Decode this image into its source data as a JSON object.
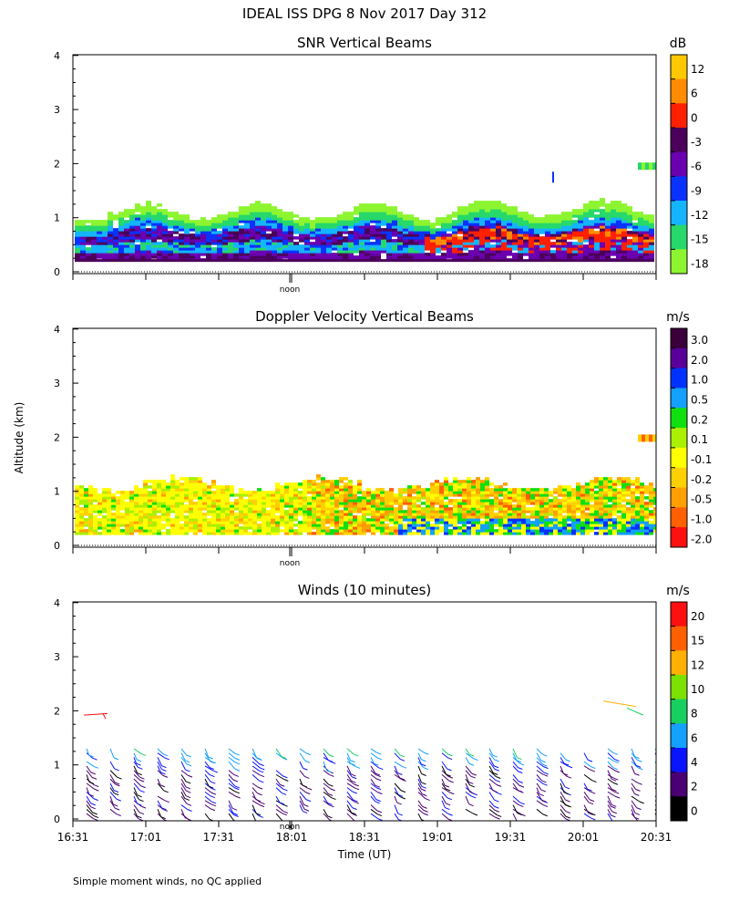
{
  "title": "IDEAL ISS DPG    8 Nov 2017 Day 312",
  "ylabel": "Altitude (km)",
  "y_ticks": [
    "0",
    "1",
    "2",
    "3",
    "4"
  ],
  "noon_label": "noon",
  "footer": "Simple moment winds, no QC applied",
  "chart_data": [
    {
      "type": "heatmap",
      "title": "SNR Vertical Beams",
      "colorbar_unit": "dB",
      "ylim": [
        0,
        4
      ],
      "colorbar_ticks": [
        "12",
        "6",
        "0",
        "-3",
        "-6",
        "-9",
        "-12",
        "-15",
        "-18"
      ],
      "colorbar_colors": [
        "#ffc800",
        "#ff8c00",
        "#ff2000",
        "#4b005a",
        "#6a00b0",
        "#0a32ff",
        "#14b4ff",
        "#27d86a",
        "#8cf530"
      ],
      "description_bands": [
        {
          "from_km": 0.2,
          "to_km": 1.25,
          "time_range": [
            "16:31",
            "20:31"
          ]
        },
        {
          "from_km": 1.85,
          "to_km": 2.05,
          "time_range": [
            "20:15",
            "20:31"
          ]
        }
      ]
    },
    {
      "type": "heatmap",
      "title": "Doppler Velocity Vertical Beams",
      "colorbar_unit": "m/s",
      "ylim": [
        0,
        4
      ],
      "colorbar_ticks": [
        "3.0",
        "2.0",
        "1.0",
        "0.5",
        "0.2",
        "0.1",
        "-0.1",
        "-0.2",
        "-0.5",
        "-1.0",
        "-2.0"
      ],
      "colorbar_colors": [
        "#3a003a",
        "#5a009a",
        "#0032ff",
        "#14a0ff",
        "#10e010",
        "#aaf000",
        "#ffff00",
        "#ffd000",
        "#ffa000",
        "#ff6000",
        "#ff1010"
      ],
      "description_bands": [
        {
          "from_km": 0.2,
          "to_km": 1.3,
          "time_range": [
            "16:31",
            "20:31"
          ]
        },
        {
          "from_km": 1.9,
          "to_km": 2.05,
          "time_range": [
            "20:20",
            "20:31"
          ]
        }
      ]
    },
    {
      "type": "scatter",
      "title": "Winds (10 minutes)",
      "colorbar_unit": "m/s",
      "ylim": [
        0,
        4
      ],
      "xlabel": "Time (UT)",
      "x_ticks": [
        "16:31",
        "17:01",
        "17:31",
        "18:01",
        "18:31",
        "19:01",
        "19:31",
        "20:01",
        "20:31"
      ],
      "colorbar_ticks": [
        "20",
        "15",
        "12",
        "10",
        "8",
        "6",
        "4",
        "2",
        "0"
      ],
      "colorbar_colors": [
        "#ff1010",
        "#ff6000",
        "#ffb000",
        "#7ce000",
        "#18d060",
        "#14a0ff",
        "#0a14ff",
        "#4a0072",
        "#000000"
      ],
      "barbs_altitude_range_km": [
        0.1,
        1.4
      ],
      "extra_barbs": [
        {
          "time": "16:38",
          "altitude_km": 1.9
        },
        {
          "time": "20:15",
          "altitude_km": 2.1
        }
      ]
    }
  ]
}
